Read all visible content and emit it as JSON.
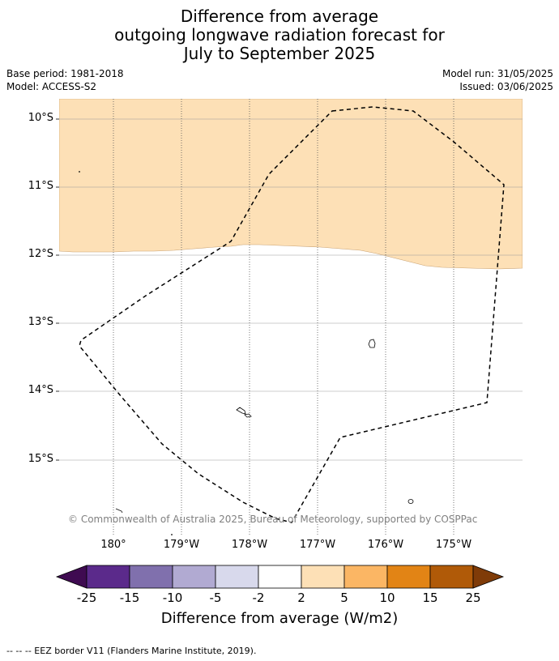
{
  "title": {
    "line1": "Difference from average",
    "line2": "outgoing longwave radiation forecast for",
    "line3": "July to September 2025"
  },
  "meta": {
    "base_period": "Base period: 1981-2018",
    "model": "Model: ACCESS-S2",
    "model_run": "Model run: 31/05/2025",
    "issued": "Issued: 03/06/2025"
  },
  "lat_labels": [
    "10°S",
    "11°S",
    "12°S",
    "13°S",
    "14°S",
    "15°S"
  ],
  "lon_labels": [
    "180°",
    "179°W",
    "178°W",
    "177°W",
    "176°W",
    "175°W"
  ],
  "copyright": "© Commonwealth of Australia 2025, Bureau of Meteorology, supported by COSPPac",
  "colorbar": {
    "title": "Difference from average (W/m2)",
    "ticks": [
      "-25",
      "-15",
      "-10",
      "-5",
      "-2",
      "2",
      "5",
      "10",
      "15",
      "25"
    ],
    "colors": {
      "lt_neg25": "#3f0b51",
      "neg25_neg15": "#5b2a8b",
      "neg15_neg10": "#8070ad",
      "neg10_neg5": "#b1aad2",
      "neg5_neg2": "#d8d9ec",
      "neg2_2": "#ffffff",
      "p2_5": "#fde0b6",
      "p5_10": "#fbb664",
      "p10_15": "#e28415",
      "p15_25": "#b05a08",
      "gt_25": "#7f3b08"
    }
  },
  "map_fill": {
    "region_north": "2 to 5 W/m2",
    "color": "#fde0b6"
  },
  "footnote": "--  --  -- EEZ border V11 (Flanders Marine Institute, 2019)."
}
